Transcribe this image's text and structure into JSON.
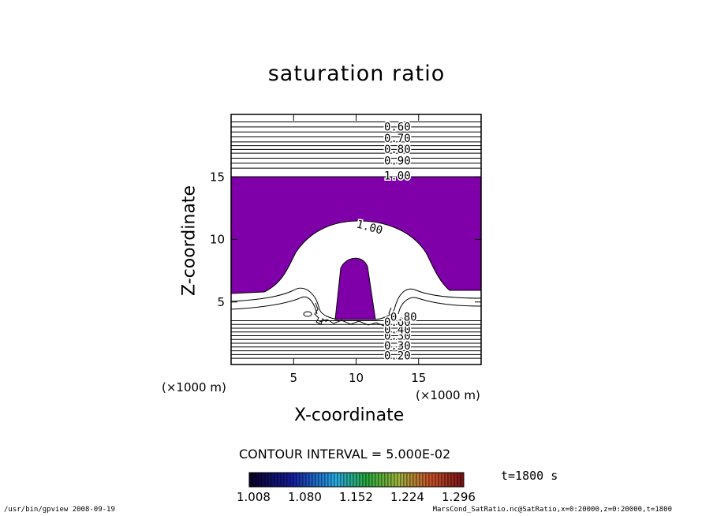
{
  "chart_data": {
    "type": "contour",
    "title": "saturation ratio",
    "xlabel": "X-coordinate",
    "ylabel": "Z-coordinate",
    "x_unit": "(×1000 m)",
    "y_unit": "(×1000 m)",
    "xlim": [
      0,
      20
    ],
    "ylim": [
      0,
      20
    ],
    "x_ticks": [
      "5",
      "10",
      "15"
    ],
    "y_ticks": [
      "5",
      "10",
      "15"
    ],
    "contour_labels": [
      "0.60",
      "0.70",
      "0.80",
      "0.90",
      "1.00",
      "1.00",
      "0.30",
      "0.40",
      "0.20",
      "0.30",
      "0.60",
      "0.80"
    ],
    "filled_region": {
      "min_value": 1.0,
      "color": "#7f00a8"
    },
    "contour_interval": "CONTOUR INTERVAL = 5.000E-02",
    "time_label": "t=1800 s",
    "colorbar": {
      "ticks": [
        "1.008",
        "1.080",
        "1.152",
        "1.224",
        "1.296"
      ]
    }
  },
  "footer": {
    "left": "/usr/bin/gpview   2008-09-19",
    "right": "MarsCond_SatRatio.nc@SatRatio,x=0:20000,z=0:20000,t=1800"
  }
}
